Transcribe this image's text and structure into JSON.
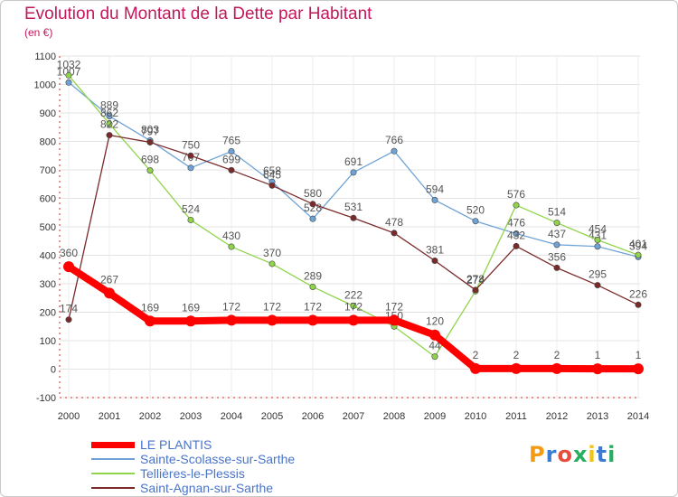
{
  "title": "Evolution du Montant de la Dette par Habitant",
  "subtitle": "(en €)",
  "logo": {
    "letters": [
      "P",
      "r",
      "o",
      "x",
      "i",
      "t",
      "i"
    ],
    "colors": [
      "#f39c12",
      "#3a7bd5",
      "#e84c3d",
      "#27ae60",
      "#f1c40f",
      "#3a7bd5",
      "#27ae60"
    ]
  },
  "chart_data": {
    "type": "line",
    "title": "Evolution du Montant de la Dette par Habitant",
    "ylabel": "(en €)",
    "x": [
      "2000",
      "2001",
      "2002",
      "2003",
      "2004",
      "2005",
      "2006",
      "2007",
      "2008",
      "2009",
      "2010",
      "2011",
      "2012",
      "2013",
      "2014"
    ],
    "ylim": [
      -100,
      1100
    ],
    "yticks": [
      -100,
      0,
      100,
      200,
      300,
      400,
      500,
      600,
      700,
      800,
      900,
      1000,
      1100
    ],
    "grid": true,
    "legend_position": "bottom-left",
    "series": [
      {
        "name": "LE PLANTIS",
        "color": "#ff0000",
        "labels": [
          "360",
          "267",
          "169",
          "169",
          "172",
          "172",
          "172",
          "172",
          "172",
          "120",
          "2",
          "2",
          "2",
          "1",
          "1"
        ],
        "values": [
          360,
          267,
          169,
          169,
          172,
          172,
          172,
          172,
          172,
          120,
          2,
          2,
          2,
          1,
          1
        ]
      },
      {
        "name": "Sainte-Scolasse-sur-Sarthe",
        "color": "#6fa3d6",
        "labels": [
          "1007",
          "889",
          "803",
          "707",
          "765",
          "658",
          "528",
          "691",
          "766",
          "594",
          "520",
          "476",
          "437",
          "431",
          "394"
        ],
        "values": [
          1007,
          889,
          803,
          707,
          765,
          658,
          528,
          691,
          766,
          594,
          520,
          476,
          437,
          431,
          394
        ]
      },
      {
        "name": "Tellières-le-Plessis",
        "color": "#8fd44a",
        "labels": [
          "1032",
          "862",
          "698",
          "524",
          "430",
          "370",
          "289",
          "222",
          "150",
          "44",
          "274",
          "576",
          "514",
          "454",
          "401"
        ],
        "values": [
          1032,
          862,
          698,
          524,
          430,
          370,
          289,
          222,
          150,
          44,
          274,
          576,
          514,
          454,
          401
        ]
      },
      {
        "name": "Saint-Agnan-sur-Sarthe",
        "color": "#7b2a2a",
        "labels": [
          "174",
          "822",
          "797",
          "750",
          "699",
          "645",
          "580",
          "531",
          "478",
          "381",
          "278",
          "432",
          "356",
          "295",
          "226"
        ],
        "values": [
          174,
          822,
          797,
          750,
          699,
          645,
          580,
          531,
          478,
          381,
          278,
          432,
          356,
          295,
          226
        ]
      }
    ]
  }
}
